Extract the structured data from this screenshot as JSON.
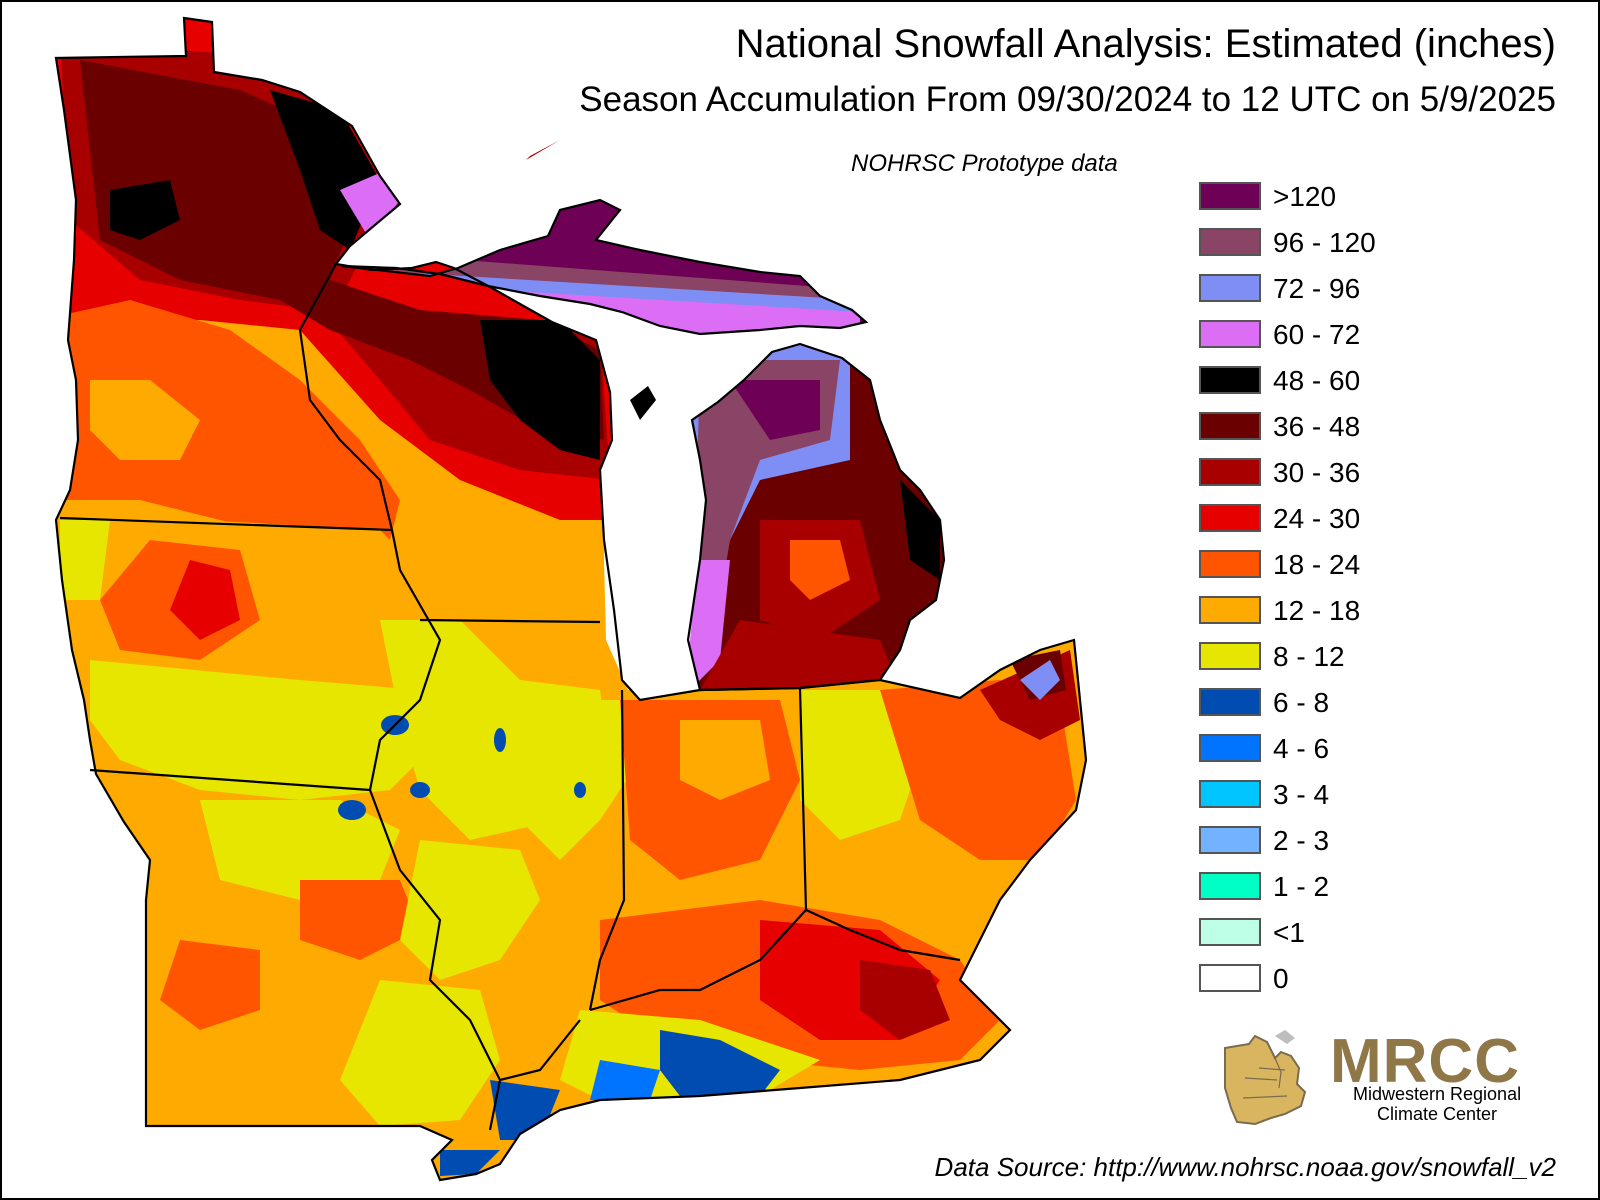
{
  "title": "National Snowfall Analysis: Estimated (inches)",
  "subtitle": "Season Accumulation From 09/30/2024 to 12 UTC on 5/9/2025",
  "prototype_note": "NOHRSC Prototype data",
  "legend": [
    {
      "label": ">120",
      "color": "#6e0055"
    },
    {
      "label": "96 - 120",
      "color": "#8a4566"
    },
    {
      "label": "72 - 96",
      "color": "#7f8ef5"
    },
    {
      "label": "60 - 72",
      "color": "#db6ef5"
    },
    {
      "label": "48 - 60",
      "color": "#000000"
    },
    {
      "label": "36 - 48",
      "color": "#6b0000"
    },
    {
      "label": "30 - 36",
      "color": "#a80000"
    },
    {
      "label": "24 - 30",
      "color": "#e60000"
    },
    {
      "label": "18 - 24",
      "color": "#ff5500"
    },
    {
      "label": "12 - 18",
      "color": "#ffaa00"
    },
    {
      "label": "8 - 12",
      "color": "#e6e600"
    },
    {
      "label": "6 - 8",
      "color": "#004cb0"
    },
    {
      "label": "4 - 6",
      "color": "#0073ff"
    },
    {
      "label": "3 - 4",
      "color": "#00c5ff"
    },
    {
      "label": "2 - 3",
      "color": "#73b2ff"
    },
    {
      "label": "1 - 2",
      "color": "#00ffc5"
    },
    {
      "label": "<1",
      "color": "#beffe8"
    },
    {
      "label": "0",
      "color": "#ffffff"
    }
  ],
  "logo": {
    "name": "MRCC",
    "line1": "Midwestern Regional",
    "line2": "Climate Center"
  },
  "source": "Data Source: http://www.nohrsc.noaa.gov/snowfall_v2"
}
